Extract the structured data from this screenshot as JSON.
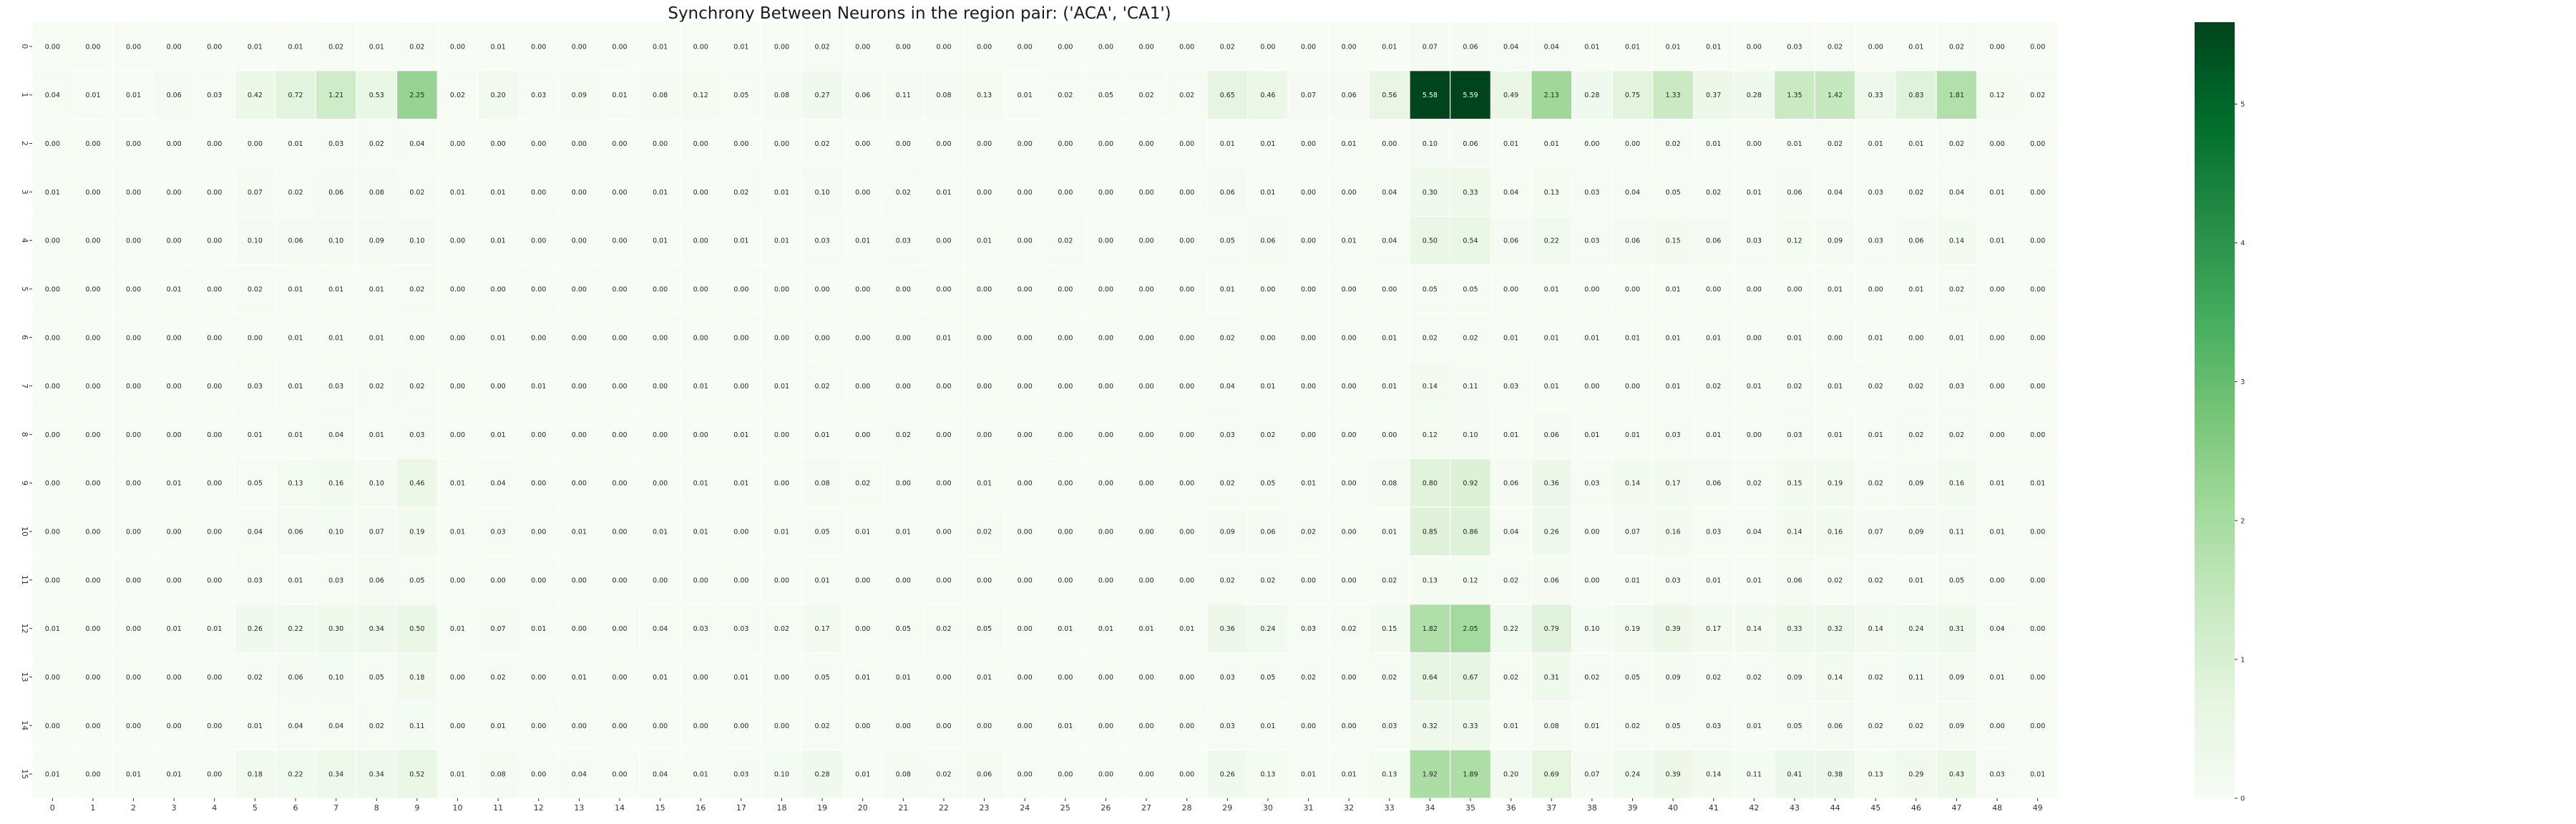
{
  "chart_data": {
    "type": "heatmap",
    "title": "Synchrony Between Neurons in the region pair: ('ACA', 'CA1')",
    "xlabel": "",
    "ylabel": "",
    "x_categories": [
      "0",
      "1",
      "2",
      "3",
      "4",
      "5",
      "6",
      "7",
      "8",
      "9",
      "10",
      "11",
      "12",
      "13",
      "14",
      "15",
      "16",
      "17",
      "18",
      "19",
      "20",
      "21",
      "22",
      "23",
      "24",
      "25",
      "26",
      "27",
      "28",
      "29",
      "30",
      "31",
      "32",
      "33",
      "34",
      "35",
      "36",
      "37",
      "38",
      "39",
      "40",
      "41",
      "42",
      "43",
      "44",
      "45",
      "46",
      "47",
      "48",
      "49"
    ],
    "y_categories": [
      "0",
      "1",
      "2",
      "3",
      "4",
      "5",
      "6",
      "7",
      "8",
      "9",
      "10",
      "11",
      "12",
      "13",
      "14",
      "15"
    ],
    "values": [
      [
        0.0,
        0.0,
        0.0,
        0.0,
        0.0,
        0.01,
        0.01,
        0.02,
        0.01,
        0.02,
        0.0,
        0.01,
        0.0,
        0.0,
        0.0,
        0.01,
        0.0,
        0.01,
        0.0,
        0.02,
        0.0,
        0.0,
        0.0,
        0.0,
        0.0,
        0.0,
        0.0,
        0.0,
        0.0,
        0.02,
        0.0,
        0.0,
        0.0,
        0.01,
        0.07,
        0.06,
        0.04,
        0.04,
        0.01,
        0.01,
        0.01,
        0.01,
        0.0,
        0.03,
        0.02,
        0.0,
        0.01,
        0.02,
        0.0,
        0.0
      ],
      [
        0.04,
        0.01,
        0.01,
        0.06,
        0.03,
        0.42,
        0.72,
        1.21,
        0.53,
        2.25,
        0.02,
        0.2,
        0.03,
        0.09,
        0.01,
        0.08,
        0.12,
        0.05,
        0.08,
        0.27,
        0.06,
        0.11,
        0.08,
        0.13,
        0.01,
        0.02,
        0.05,
        0.02,
        0.02,
        0.65,
        0.46,
        0.07,
        0.06,
        0.56,
        5.58,
        5.59,
        0.49,
        2.13,
        0.28,
        0.75,
        1.33,
        0.37,
        0.28,
        1.35,
        1.42,
        0.33,
        0.83,
        1.81,
        0.12,
        0.02
      ],
      [
        0.0,
        0.0,
        0.0,
        0.0,
        0.0,
        0.0,
        0.01,
        0.03,
        0.02,
        0.04,
        0.0,
        0.0,
        0.0,
        0.0,
        0.0,
        0.0,
        0.0,
        0.0,
        0.0,
        0.02,
        0.0,
        0.0,
        0.0,
        0.0,
        0.0,
        0.0,
        0.0,
        0.0,
        0.0,
        0.01,
        0.01,
        0.0,
        0.01,
        0.0,
        0.1,
        0.06,
        0.01,
        0.01,
        0.0,
        0.0,
        0.02,
        0.01,
        0.0,
        0.01,
        0.02,
        0.01,
        0.01,
        0.02,
        0.0,
        0.0
      ],
      [
        0.01,
        0.0,
        0.0,
        0.0,
        0.0,
        0.07,
        0.02,
        0.06,
        0.08,
        0.02,
        0.01,
        0.01,
        0.0,
        0.0,
        0.0,
        0.01,
        0.0,
        0.02,
        0.01,
        0.1,
        0.0,
        0.02,
        0.01,
        0.0,
        0.0,
        0.0,
        0.0,
        0.0,
        0.0,
        0.06,
        0.01,
        0.0,
        0.0,
        0.04,
        0.3,
        0.33,
        0.04,
        0.13,
        0.03,
        0.04,
        0.05,
        0.02,
        0.01,
        0.06,
        0.04,
        0.03,
        0.02,
        0.04,
        0.01,
        0.0
      ],
      [
        0.0,
        0.0,
        0.0,
        0.0,
        0.0,
        0.1,
        0.06,
        0.1,
        0.09,
        0.1,
        0.0,
        0.01,
        0.0,
        0.0,
        0.0,
        0.01,
        0.0,
        0.01,
        0.01,
        0.03,
        0.01,
        0.03,
        0.0,
        0.01,
        0.0,
        0.02,
        0.0,
        0.0,
        0.0,
        0.05,
        0.06,
        0.0,
        0.01,
        0.04,
        0.5,
        0.54,
        0.06,
        0.22,
        0.03,
        0.06,
        0.15,
        0.06,
        0.03,
        0.12,
        0.09,
        0.03,
        0.06,
        0.14,
        0.01,
        0.0
      ],
      [
        0.0,
        0.0,
        0.0,
        0.01,
        0.0,
        0.02,
        0.01,
        0.01,
        0.01,
        0.02,
        0.0,
        0.0,
        0.0,
        0.0,
        0.0,
        0.0,
        0.0,
        0.0,
        0.0,
        0.0,
        0.0,
        0.0,
        0.0,
        0.0,
        0.0,
        0.0,
        0.0,
        0.0,
        0.0,
        0.01,
        0.0,
        0.0,
        0.0,
        0.0,
        0.05,
        0.05,
        0.0,
        0.01,
        0.0,
        0.0,
        0.01,
        0.0,
        0.0,
        0.0,
        0.01,
        0.0,
        0.01,
        0.02,
        0.0,
        0.0
      ],
      [
        0.0,
        0.0,
        0.0,
        0.0,
        0.0,
        0.0,
        0.01,
        0.01,
        0.01,
        0.0,
        0.0,
        0.01,
        0.0,
        0.0,
        0.0,
        0.0,
        0.0,
        0.0,
        0.0,
        0.0,
        0.0,
        0.0,
        0.01,
        0.0,
        0.0,
        0.0,
        0.0,
        0.0,
        0.0,
        0.02,
        0.0,
        0.0,
        0.0,
        0.01,
        0.02,
        0.02,
        0.01,
        0.01,
        0.01,
        0.01,
        0.01,
        0.01,
        0.0,
        0.01,
        0.0,
        0.01,
        0.0,
        0.01,
        0.0,
        0.0
      ],
      [
        0.0,
        0.0,
        0.0,
        0.0,
        0.0,
        0.03,
        0.01,
        0.03,
        0.02,
        0.02,
        0.0,
        0.0,
        0.01,
        0.0,
        0.0,
        0.0,
        0.01,
        0.0,
        0.01,
        0.02,
        0.0,
        0.0,
        0.0,
        0.0,
        0.0,
        0.0,
        0.0,
        0.0,
        0.0,
        0.04,
        0.01,
        0.0,
        0.0,
        0.01,
        0.14,
        0.11,
        0.03,
        0.01,
        0.0,
        0.0,
        0.01,
        0.02,
        0.01,
        0.02,
        0.01,
        0.02,
        0.02,
        0.03,
        0.0,
        0.0
      ],
      [
        0.0,
        0.0,
        0.0,
        0.0,
        0.0,
        0.01,
        0.01,
        0.04,
        0.01,
        0.03,
        0.0,
        0.01,
        0.0,
        0.0,
        0.0,
        0.0,
        0.0,
        0.01,
        0.0,
        0.01,
        0.0,
        0.02,
        0.0,
        0.0,
        0.0,
        0.0,
        0.0,
        0.0,
        0.0,
        0.03,
        0.02,
        0.0,
        0.0,
        0.0,
        0.12,
        0.1,
        0.01,
        0.06,
        0.01,
        0.01,
        0.03,
        0.01,
        0.0,
        0.03,
        0.01,
        0.01,
        0.02,
        0.02,
        0.0,
        0.0
      ],
      [
        0.0,
        0.0,
        0.0,
        0.01,
        0.0,
        0.05,
        0.13,
        0.16,
        0.1,
        0.46,
        0.01,
        0.04,
        0.0,
        0.0,
        0.0,
        0.0,
        0.01,
        0.01,
        0.0,
        0.08,
        0.02,
        0.0,
        0.0,
        0.01,
        0.0,
        0.0,
        0.0,
        0.0,
        0.0,
        0.02,
        0.05,
        0.01,
        0.0,
        0.08,
        0.8,
        0.92,
        0.06,
        0.36,
        0.03,
        0.14,
        0.17,
        0.06,
        0.02,
        0.15,
        0.19,
        0.02,
        0.09,
        0.16,
        0.01,
        0.01
      ],
      [
        0.0,
        0.0,
        0.0,
        0.0,
        0.0,
        0.04,
        0.06,
        0.1,
        0.07,
        0.19,
        0.01,
        0.03,
        0.0,
        0.01,
        0.0,
        0.01,
        0.01,
        0.0,
        0.01,
        0.05,
        0.01,
        0.01,
        0.0,
        0.02,
        0.0,
        0.0,
        0.0,
        0.0,
        0.0,
        0.09,
        0.06,
        0.02,
        0.0,
        0.01,
        0.85,
        0.86,
        0.04,
        0.26,
        0.0,
        0.07,
        0.16,
        0.03,
        0.04,
        0.14,
        0.16,
        0.07,
        0.09,
        0.11,
        0.01,
        0.0
      ],
      [
        0.0,
        0.0,
        0.0,
        0.0,
        0.0,
        0.03,
        0.01,
        0.03,
        0.06,
        0.05,
        0.0,
        0.0,
        0.0,
        0.0,
        0.0,
        0.0,
        0.0,
        0.0,
        0.0,
        0.01,
        0.0,
        0.0,
        0.0,
        0.0,
        0.0,
        0.0,
        0.0,
        0.0,
        0.0,
        0.02,
        0.02,
        0.0,
        0.0,
        0.02,
        0.13,
        0.12,
        0.02,
        0.06,
        0.0,
        0.01,
        0.03,
        0.01,
        0.01,
        0.06,
        0.02,
        0.02,
        0.01,
        0.05,
        0.0,
        0.0
      ],
      [
        0.01,
        0.0,
        0.0,
        0.01,
        0.01,
        0.26,
        0.22,
        0.3,
        0.34,
        0.5,
        0.01,
        0.07,
        0.01,
        0.0,
        0.0,
        0.04,
        0.03,
        0.03,
        0.02,
        0.17,
        0.0,
        0.05,
        0.02,
        0.05,
        0.0,
        0.01,
        0.01,
        0.01,
        0.01,
        0.36,
        0.24,
        0.03,
        0.02,
        0.15,
        1.82,
        2.05,
        0.22,
        0.79,
        0.1,
        0.19,
        0.39,
        0.17,
        0.14,
        0.33,
        0.32,
        0.14,
        0.24,
        0.31,
        0.04,
        0.0
      ],
      [
        0.0,
        0.0,
        0.0,
        0.0,
        0.0,
        0.02,
        0.06,
        0.1,
        0.05,
        0.18,
        0.0,
        0.02,
        0.0,
        0.01,
        0.0,
        0.01,
        0.0,
        0.01,
        0.0,
        0.05,
        0.01,
        0.01,
        0.0,
        0.01,
        0.0,
        0.0,
        0.0,
        0.0,
        0.0,
        0.03,
        0.05,
        0.02,
        0.0,
        0.02,
        0.64,
        0.67,
        0.02,
        0.31,
        0.02,
        0.05,
        0.09,
        0.02,
        0.02,
        0.09,
        0.14,
        0.02,
        0.11,
        0.09,
        0.01,
        0.0
      ],
      [
        0.0,
        0.0,
        0.0,
        0.0,
        0.0,
        0.01,
        0.04,
        0.04,
        0.02,
        0.11,
        0.0,
        0.01,
        0.0,
        0.0,
        0.0,
        0.0,
        0.0,
        0.0,
        0.0,
        0.02,
        0.0,
        0.0,
        0.0,
        0.0,
        0.0,
        0.01,
        0.0,
        0.0,
        0.0,
        0.03,
        0.01,
        0.0,
        0.0,
        0.03,
        0.32,
        0.33,
        0.01,
        0.08,
        0.01,
        0.02,
        0.05,
        0.03,
        0.01,
        0.05,
        0.06,
        0.02,
        0.02,
        0.09,
        0.0,
        0.0
      ],
      [
        0.01,
        0.0,
        0.01,
        0.01,
        0.0,
        0.18,
        0.22,
        0.34,
        0.34,
        0.52,
        0.01,
        0.08,
        0.0,
        0.04,
        0.0,
        0.04,
        0.01,
        0.03,
        0.1,
        0.28,
        0.01,
        0.08,
        0.02,
        0.06,
        0.0,
        0.0,
        0.0,
        0.0,
        0.0,
        0.26,
        0.13,
        0.01,
        0.01,
        0.13,
        1.92,
        1.89,
        0.2,
        0.69,
        0.07,
        0.24,
        0.39,
        0.14,
        0.11,
        0.41,
        0.38,
        0.13,
        0.29,
        0.43,
        0.03,
        0.01
      ]
    ],
    "zlim": [
      0,
      5.59
    ],
    "colormap": "Greens",
    "colormap_stops": [
      "#f7fcf5",
      "#e5f5e0",
      "#c7e9c0",
      "#a1d99b",
      "#74c476",
      "#41ab5d",
      "#238b45",
      "#006d2c",
      "#00441b"
    ],
    "colorbar_ticks": [
      0,
      1,
      2,
      3,
      4,
      5
    ],
    "annotations_format": "0.00",
    "grid": false,
    "cell_border_color": "#ffffff"
  }
}
